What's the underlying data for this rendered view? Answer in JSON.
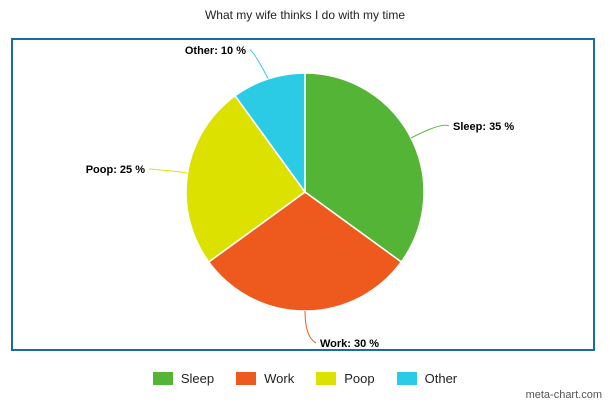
{
  "title": "What my wife thinks I do with my time",
  "credit": "meta-chart.com",
  "chart_data": {
    "type": "pie",
    "title": "What my wife thinks I do with my time",
    "slices": [
      {
        "name": "Sleep",
        "value": 35,
        "label": "Sleep: 35 %",
        "color": "#54b435"
      },
      {
        "name": "Work",
        "value": 30,
        "label": "Work: 30 %",
        "color": "#ee5a1e"
      },
      {
        "name": "Poop",
        "value": 25,
        "label": "Poop: 25 %",
        "color": "#dde100"
      },
      {
        "name": "Other",
        "value": 10,
        "label": "Other: 10 %",
        "color": "#2bcbe6"
      }
    ],
    "legend_placement": "bottom"
  },
  "legend": [
    {
      "label": "Sleep",
      "color": "#54b435"
    },
    {
      "label": "Work",
      "color": "#ee5a1e"
    },
    {
      "label": "Poop",
      "color": "#dde100"
    },
    {
      "label": "Other",
      "color": "#2bcbe6"
    }
  ]
}
